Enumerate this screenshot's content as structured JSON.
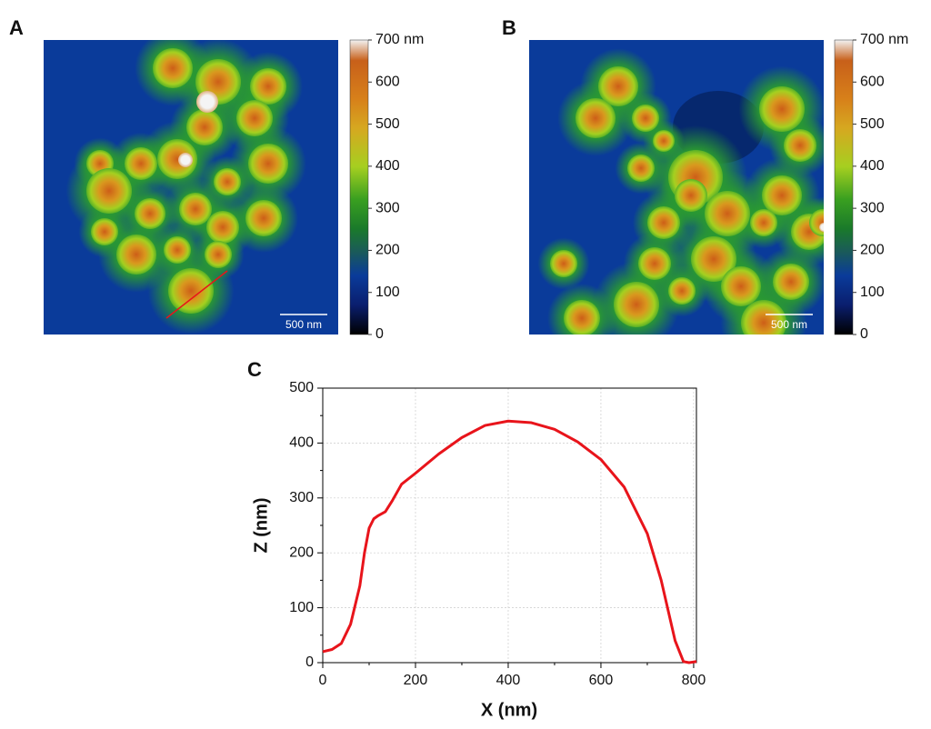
{
  "panels": [
    {
      "label": "A",
      "scale_bar": "500 nm",
      "colorbar": {
        "lim": [
          0,
          700
        ],
        "ticks": [
          0,
          100,
          200,
          300,
          400,
          500,
          600,
          {
            "value": 700,
            "label": "700 nm"
          }
        ]
      }
    },
    {
      "label": "B",
      "scale_bar": "500 nm",
      "colorbar": {
        "lim": [
          0,
          700
        ],
        "ticks": [
          0,
          100,
          200,
          300,
          400,
          500,
          600,
          {
            "value": 700,
            "label": "700 nm"
          }
        ]
      }
    }
  ],
  "chart_data": {
    "type": "line",
    "label": "C",
    "xlabel": "X (nm)",
    "ylabel": "Z (nm)",
    "xlim": [
      0,
      806
    ],
    "ylim": [
      0,
      500
    ],
    "xticks": [
      0,
      200,
      400,
      600,
      800
    ],
    "yticks": [
      0,
      100,
      200,
      300,
      400,
      500
    ],
    "grid": true,
    "x": [
      0,
      20,
      40,
      60,
      80,
      90,
      100,
      110,
      120,
      135,
      150,
      170,
      200,
      250,
      300,
      350,
      400,
      450,
      500,
      550,
      600,
      650,
      700,
      730,
      760,
      778,
      790,
      806
    ],
    "series": [
      {
        "color": "#e8141b",
        "values": [
          20,
          24,
          35,
          70,
          140,
          200,
          245,
          262,
          268,
          275,
          295,
          325,
          345,
          380,
          410,
          432,
          440,
          437,
          425,
          402,
          370,
          320,
          235,
          150,
          40,
          2,
          0,
          2
        ]
      }
    ]
  }
}
